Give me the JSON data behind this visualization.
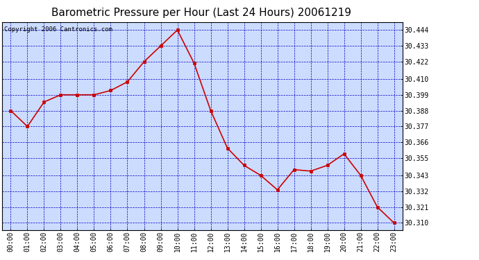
{
  "title": "Barometric Pressure per Hour (Last 24 Hours) 20061219",
  "copyright": "Copyright 2006 Cantronics.com",
  "hours": [
    "00:00",
    "01:00",
    "02:00",
    "03:00",
    "04:00",
    "05:00",
    "06:00",
    "07:00",
    "08:00",
    "09:00",
    "10:00",
    "11:00",
    "12:00",
    "13:00",
    "14:00",
    "15:00",
    "16:00",
    "17:00",
    "18:00",
    "19:00",
    "20:00",
    "21:00",
    "22:00",
    "23:00"
  ],
  "values": [
    30.388,
    30.377,
    30.394,
    30.399,
    30.399,
    30.399,
    30.402,
    30.408,
    30.422,
    30.433,
    30.444,
    30.421,
    30.388,
    30.362,
    30.35,
    30.343,
    30.333,
    30.347,
    30.346,
    30.35,
    30.358,
    30.343,
    30.321,
    30.31
  ],
  "ylim_min": 30.305,
  "ylim_max": 30.4495,
  "yticks": [
    30.31,
    30.321,
    30.332,
    30.343,
    30.355,
    30.366,
    30.377,
    30.388,
    30.399,
    30.41,
    30.422,
    30.433,
    30.444
  ],
  "line_color": "#cc0000",
  "marker_color": "#cc0000",
  "bg_color": "#ccdcff",
  "grid_color": "#0000bb",
  "title_color": "#000000",
  "copyright_color": "#000000",
  "title_fontsize": 11,
  "tick_fontsize": 7,
  "copyright_fontsize": 6.5
}
